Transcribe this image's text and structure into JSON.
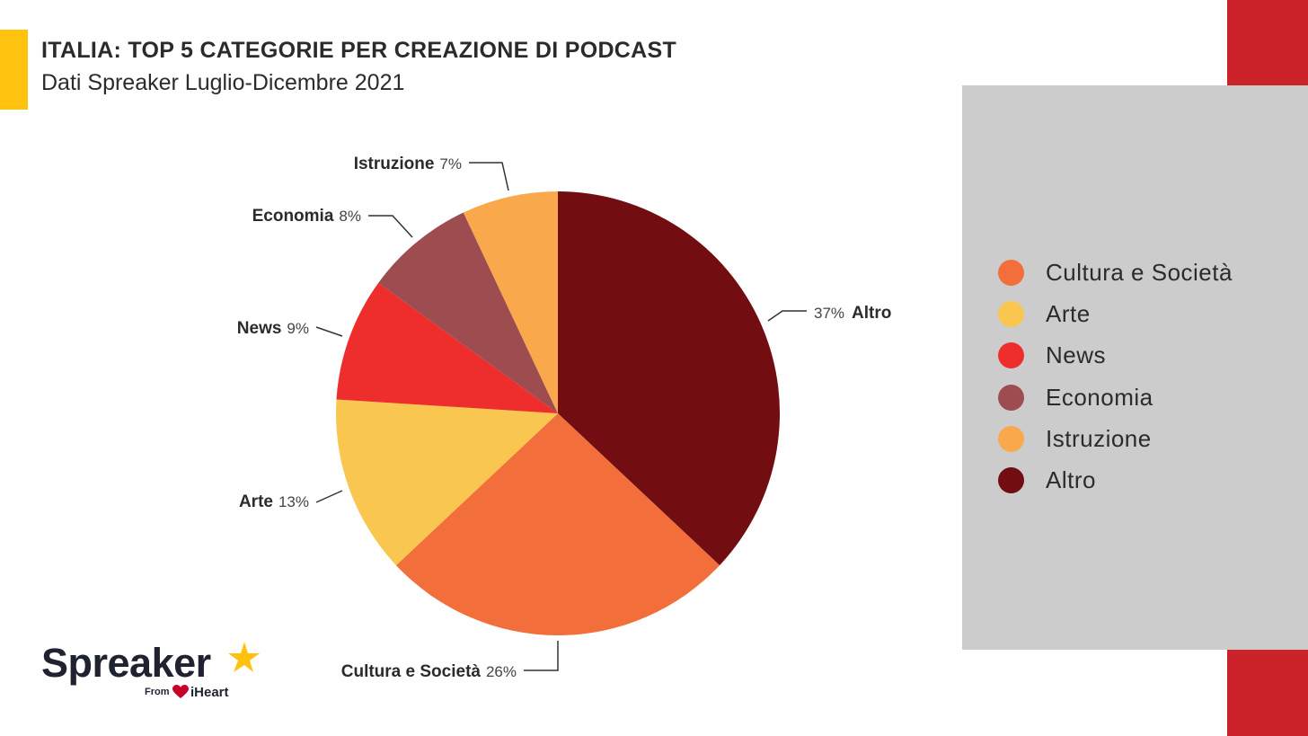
{
  "header": {
    "title": "ITALIA: TOP 5 CATEGORIE PER CREAZIONE DI PODCAST",
    "subtitle": "Dati Spreaker Luglio-Dicembre 2021"
  },
  "colors": {
    "accent_yellow": "#FFC20E",
    "brand_red": "#CC2229",
    "panel_gray": "#CCCCCC",
    "leader_line": "#333333"
  },
  "chart_data": {
    "type": "pie",
    "start_angle_deg": 0,
    "direction": "clockwise",
    "slices": [
      {
        "label": "Altro",
        "value": 37,
        "value_label": "37%",
        "color": "#720D12"
      },
      {
        "label": "Cultura e Società",
        "value": 26,
        "value_label": "26%",
        "color": "#F26F3B"
      },
      {
        "label": "Arte",
        "value": 13,
        "value_label": "13%",
        "color": "#F9C74F"
      },
      {
        "label": "News",
        "value": 9,
        "value_label": "9%",
        "color": "#EE2D2D"
      },
      {
        "label": "Economia",
        "value": 8,
        "value_label": "8%",
        "color": "#9D4D4F"
      },
      {
        "label": "Istruzione",
        "value": 7,
        "value_label": "7%",
        "color": "#F9A94B"
      }
    ],
    "legend": {
      "placement": "right",
      "items": [
        {
          "label": "Cultura e Società",
          "color": "#F26F3B"
        },
        {
          "label": "Arte",
          "color": "#F9C74F"
        },
        {
          "label": "News",
          "color": "#EE2D2D"
        },
        {
          "label": "Economia",
          "color": "#9D4D4F"
        },
        {
          "label": "Istruzione",
          "color": "#F9A94B"
        },
        {
          "label": "Altro",
          "color": "#720D12"
        }
      ]
    }
  },
  "logo": {
    "wordmark": "Spreaker",
    "from_text": "From",
    "partner": "iHeart"
  }
}
